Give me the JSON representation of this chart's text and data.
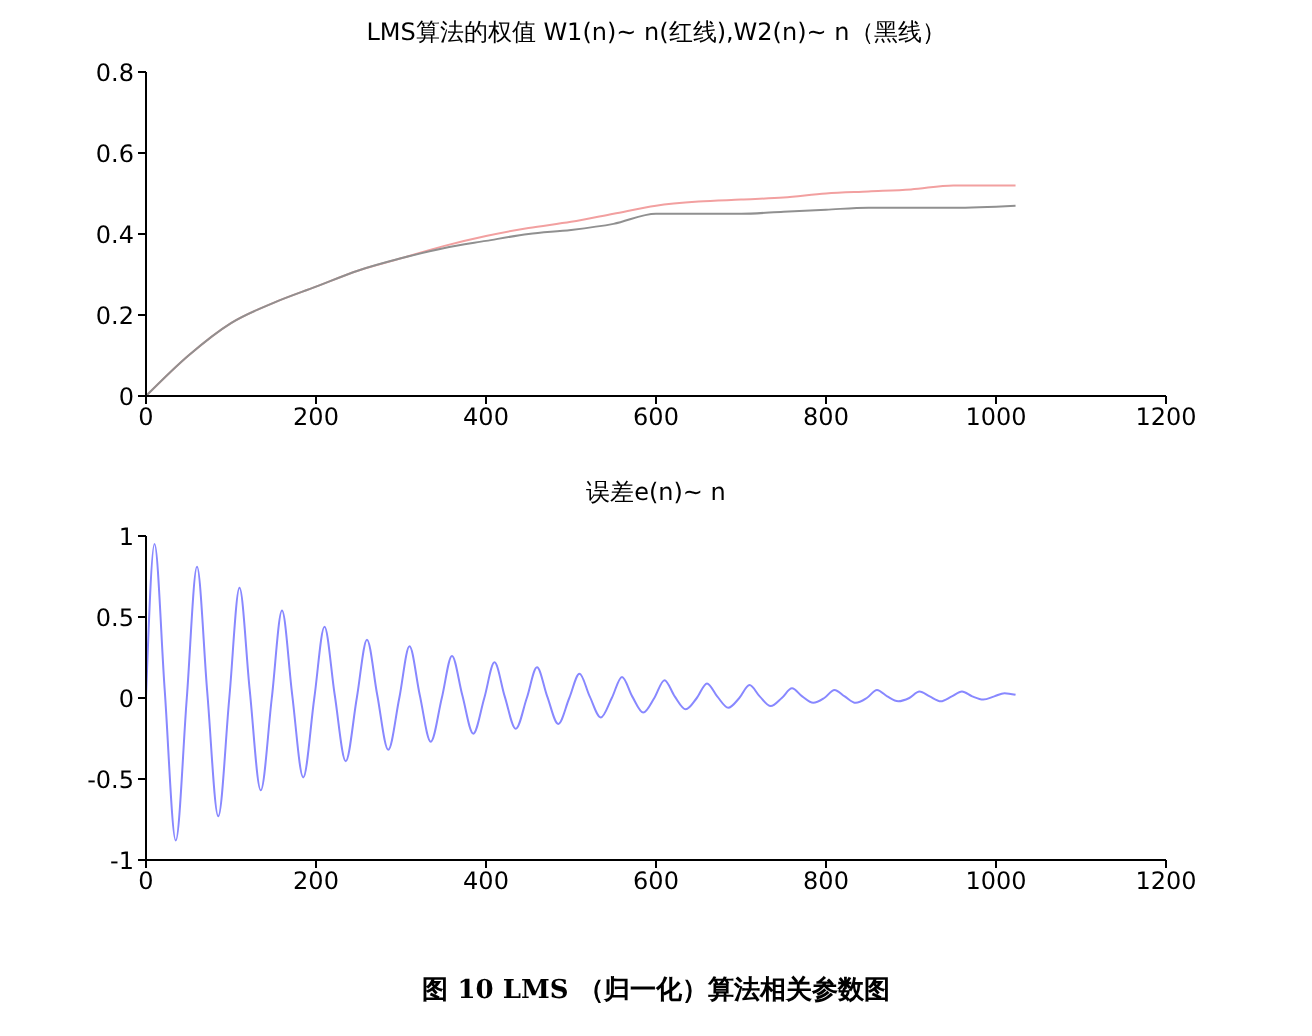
{
  "chart_data": [
    {
      "type": "line",
      "title": "LMS算法的权值 W1(n)~ n(红线),W2(n)~ n（黑线）",
      "xlim": [
        0,
        1200
      ],
      "xticks": [
        0,
        200,
        400,
        600,
        800,
        1000,
        1200
      ],
      "ylim": [
        0,
        0.8
      ],
      "yticks": [
        0,
        0.2,
        0.4,
        0.6,
        0.8
      ],
      "marker": "none",
      "series": [
        {
          "color": "#f2a0a0",
          "x": [
            0,
            50,
            100,
            150,
            200,
            250,
            300,
            350,
            400,
            450,
            500,
            550,
            600,
            650,
            700,
            750,
            800,
            850,
            900,
            950,
            1023
          ],
          "values": [
            0,
            0.1,
            0.18,
            0.23,
            0.27,
            0.31,
            0.34,
            0.37,
            0.395,
            0.415,
            0.43,
            0.45,
            0.47,
            0.48,
            0.485,
            0.49,
            0.5,
            0.505,
            0.51,
            0.52,
            0.52
          ]
        },
        {
          "color": "#909090",
          "x": [
            0,
            50,
            100,
            150,
            200,
            250,
            300,
            350,
            400,
            450,
            500,
            550,
            600,
            650,
            700,
            750,
            800,
            850,
            900,
            950,
            1023
          ],
          "values": [
            0,
            0.1,
            0.18,
            0.23,
            0.27,
            0.31,
            0.34,
            0.365,
            0.383,
            0.4,
            0.41,
            0.425,
            0.45,
            0.45,
            0.45,
            0.455,
            0.46,
            0.465,
            0.465,
            0.465,
            0.47
          ]
        }
      ]
    },
    {
      "type": "line",
      "title": "误差e(n)~ n",
      "xlim": [
        0,
        1200
      ],
      "xticks": [
        0,
        200,
        400,
        600,
        800,
        1000,
        1200
      ],
      "ylim": [
        -1,
        1
      ],
      "yticks": [
        -1,
        -0.5,
        0,
        0.5,
        1
      ],
      "marker": "none",
      "annotations": [
        "图 10 LMS （归一化）算法相关参数图"
      ],
      "series": [
        {
          "color": "#8888ff",
          "x": [
            0,
            10,
            22,
            35,
            48,
            60,
            72,
            85,
            98,
            110,
            122,
            135,
            148,
            160,
            172,
            185,
            198,
            210,
            222,
            235,
            248,
            260,
            272,
            285,
            298,
            310,
            322,
            335,
            348,
            360,
            372,
            385,
            398,
            410,
            422,
            435,
            448,
            460,
            472,
            485,
            498,
            510,
            522,
            535,
            548,
            560,
            572,
            585,
            598,
            610,
            622,
            635,
            648,
            660,
            672,
            685,
            698,
            710,
            722,
            735,
            748,
            760,
            772,
            785,
            798,
            810,
            822,
            835,
            848,
            860,
            872,
            885,
            898,
            910,
            922,
            935,
            948,
            960,
            972,
            985,
            998,
            1010,
            1023
          ],
          "values": [
            0,
            0.95,
            0.05,
            -0.88,
            0.0,
            0.81,
            0.04,
            -0.73,
            0.0,
            0.68,
            0.05,
            -0.57,
            0.0,
            0.54,
            0.02,
            -0.49,
            0.0,
            0.44,
            0.02,
            -0.39,
            0.0,
            0.36,
            0.02,
            -0.32,
            0.0,
            0.32,
            0.02,
            -0.27,
            0.0,
            0.26,
            0.02,
            -0.22,
            0.0,
            0.22,
            0.01,
            -0.19,
            0.0,
            0.19,
            0.01,
            -0.16,
            0.0,
            0.15,
            0.01,
            -0.12,
            0.0,
            0.13,
            0.01,
            -0.09,
            0.0,
            0.11,
            0.01,
            -0.07,
            0.0,
            0.09,
            0.01,
            -0.06,
            0.0,
            0.08,
            0.01,
            -0.05,
            0.0,
            0.06,
            0.01,
            -0.03,
            0.0,
            0.05,
            0.01,
            -0.03,
            0.0,
            0.05,
            0.01,
            -0.02,
            0.0,
            0.04,
            0.01,
            -0.02,
            0.01,
            0.04,
            0.01,
            -0.01,
            0.01,
            0.03,
            0.02
          ]
        }
      ]
    }
  ]
}
